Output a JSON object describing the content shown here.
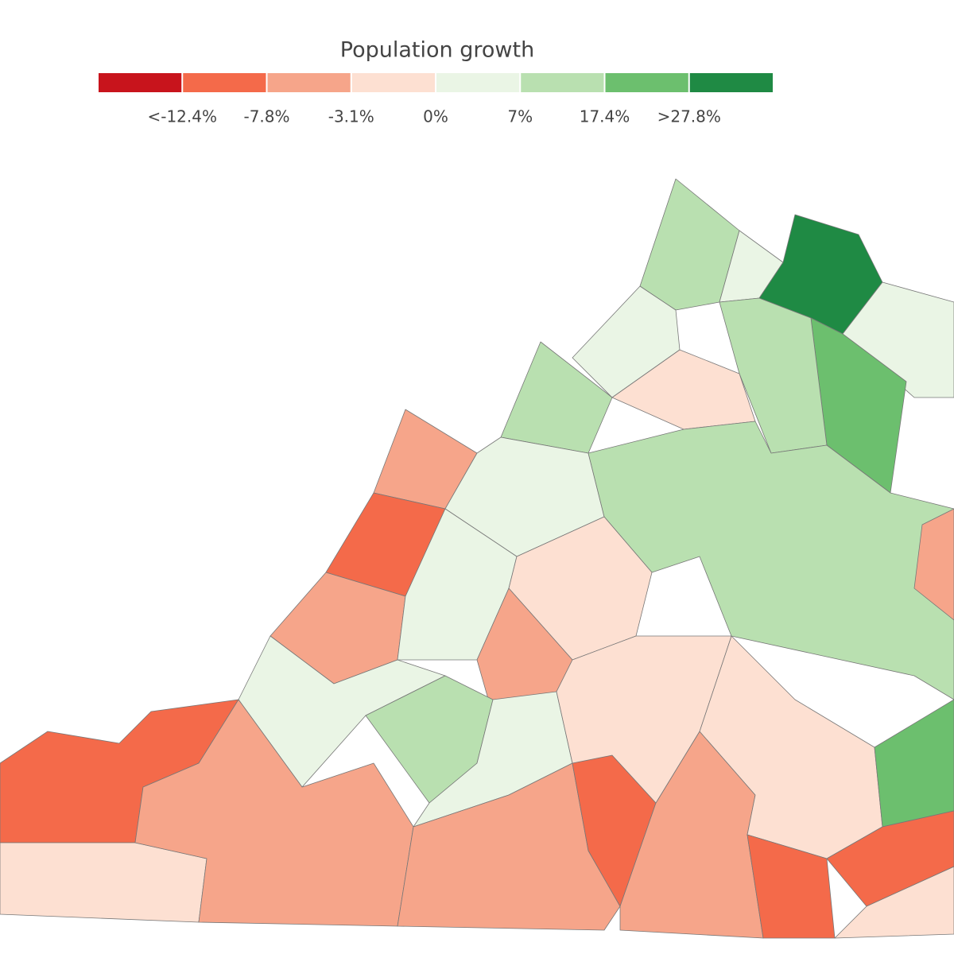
{
  "legend": {
    "title": "Population growth",
    "labels": [
      "<-12.4%",
      "-7.8%",
      "-3.1%",
      "0%",
      "7%",
      "17.4%",
      ">27.8%"
    ],
    "colors": [
      "#c8141c",
      "#f46a4a",
      "#f6a58a",
      "#fde0d2",
      "#eaf5e5",
      "#b9e0b0",
      "#6cbf6e",
      "#1f8a44"
    ]
  }
}
